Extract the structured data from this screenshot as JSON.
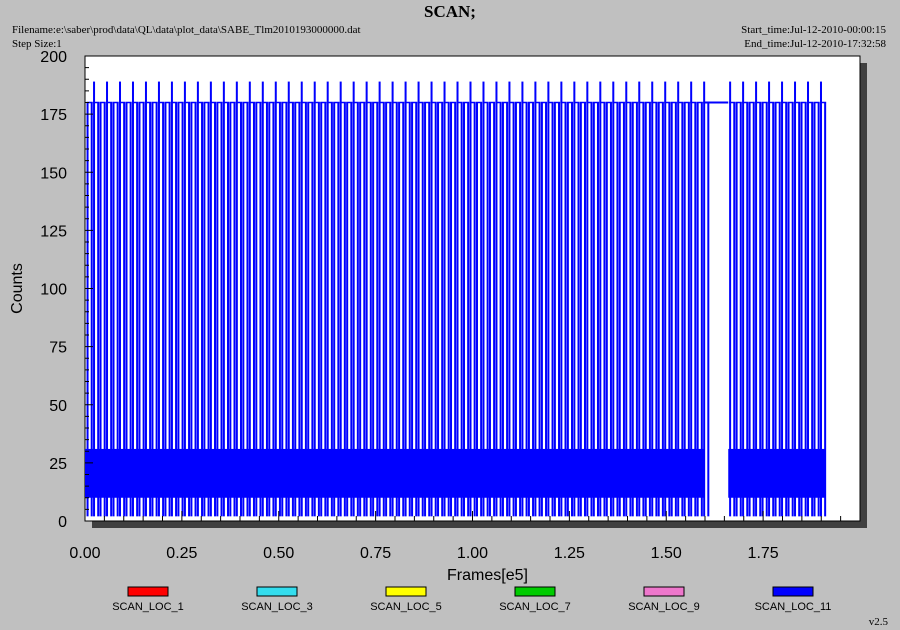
{
  "header": {
    "title": "SCAN;",
    "filename": "Filename:e:\\saber\\prod\\data\\QL\\data\\plot_data\\SABE_Tlm2010193000000.dat",
    "step_size": "Step Size:1",
    "start_time": "Start_time:Jul-12-2010-00:00:15",
    "end_time": "End_time:Jul-12-2010-17:32:58"
  },
  "footer": {
    "version": "v2.5"
  },
  "colors": {
    "background": "#c0c0c0",
    "plot_area": "#ffffff",
    "shadow": "#404040"
  },
  "chart_data": {
    "type": "line",
    "xlabel": "Frames[e5]",
    "ylabel": "Counts",
    "xlim": [
      0,
      2.0
    ],
    "ylim": [
      0,
      200
    ],
    "x_ticks": [
      0.0,
      0.25,
      0.5,
      0.75,
      1.0,
      1.25,
      1.5,
      1.75
    ],
    "x_tick_labels": [
      "0.00",
      "0.25",
      "0.50",
      "0.75",
      "1.00",
      "1.25",
      "1.50",
      "1.75"
    ],
    "y_ticks": [
      0,
      25,
      50,
      75,
      100,
      125,
      150,
      175,
      200
    ],
    "y_tick_labels": [
      "0",
      "25",
      "50",
      "75",
      "100",
      "125",
      "150",
      "175",
      "200"
    ],
    "grid": false,
    "legend_position": "bottom",
    "legend": [
      {
        "name": "SCAN_LOC_1",
        "color": "#ff0000"
      },
      {
        "name": "SCAN_LOC_3",
        "color": "#33ddee"
      },
      {
        "name": "SCAN_LOC_5",
        "color": "#ffff00"
      },
      {
        "name": "SCAN_LOC_7",
        "color": "#00cc00"
      },
      {
        "name": "SCAN_LOC_9",
        "color": "#ee77cc"
      },
      {
        "name": "SCAN_LOC_11",
        "color": "#0000ff"
      }
    ],
    "series_dominant": {
      "name": "SCAN_LOC_11",
      "color": "#0000ff",
      "data_ranges": [
        [
          0.0,
          1.6
        ],
        [
          1.66,
          1.91
        ]
      ],
      "gap": [
        1.6,
        1.66
      ],
      "gap_level": 180,
      "dense_band": [
        10,
        31
      ],
      "spike_spacing": 0.0335,
      "spike_peak_high": 189,
      "spike_peak_low": 180,
      "spike_low": 2
    }
  }
}
